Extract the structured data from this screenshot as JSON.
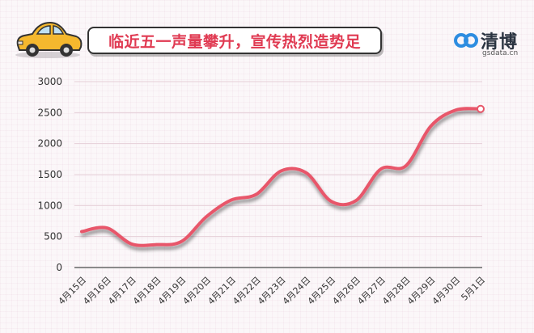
{
  "header": {
    "title": "临近五一声量攀升，宣传热烈造势足",
    "logo_name": "清博",
    "logo_domain": "gsdata.cn",
    "logo_icon": "infinity-link-icon",
    "car_icon": "yellow-car-icon"
  },
  "colors": {
    "title_red": "#e03a52",
    "line": "#e8576a",
    "car_body": "#f5b82e",
    "logo_blue": "#2d8de0"
  },
  "chart_data": {
    "type": "line",
    "title": "",
    "xlabel": "",
    "ylabel": "",
    "ylim": [
      0,
      3000
    ],
    "yticks": [
      0,
      500,
      1000,
      1500,
      2000,
      2500,
      3000
    ],
    "grid": true,
    "categories": [
      "4月15日",
      "4月16日",
      "4月17日",
      "4月18日",
      "4月19日",
      "4月20日",
      "4月21日",
      "4月22日",
      "4月23日",
      "4月24日",
      "4月25日",
      "4月26日",
      "4月27日",
      "4月28日",
      "4月29日",
      "4月30日",
      "5月1日"
    ],
    "series": [
      {
        "values": [
          580,
          640,
          380,
          370,
          420,
          820,
          1090,
          1180,
          1560,
          1530,
          1070,
          1080,
          1590,
          1640,
          2280,
          2540,
          2560
        ]
      }
    ]
  }
}
